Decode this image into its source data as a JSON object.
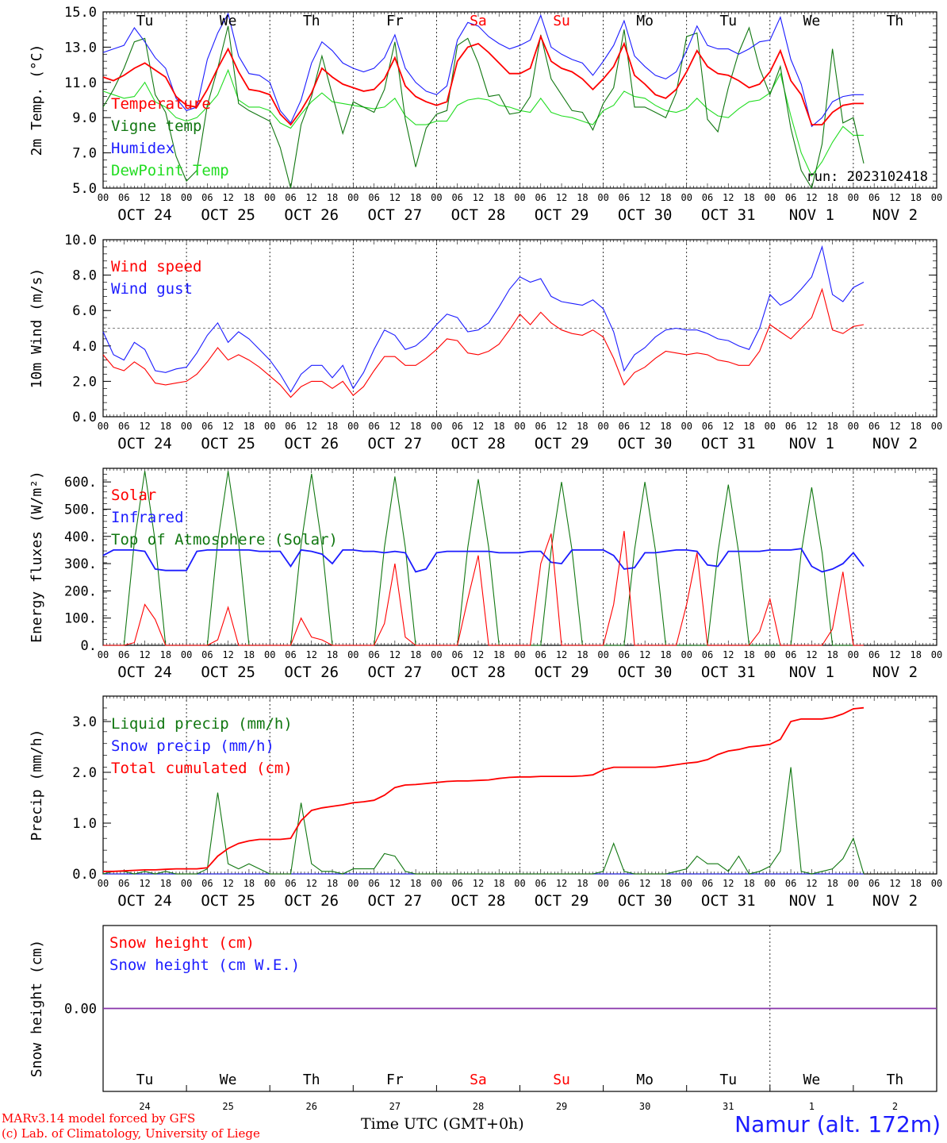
{
  "day_labels": [
    "Tu",
    "We",
    "Th",
    "Fr",
    "Sa",
    "Su",
    "Mo",
    "Tu",
    "We",
    "Th"
  ],
  "weekend_days": [
    "Sa",
    "Su"
  ],
  "date_labels": [
    "OCT 24",
    "OCT 25",
    "OCT 26",
    "OCT 27",
    "OCT 28",
    "OCT 29",
    "OCT 30",
    "OCT 31",
    "NOV  1",
    "NOV  2"
  ],
  "bottom_day_numbers": [
    "24",
    "25",
    "26",
    "27",
    "28",
    "29",
    "30",
    "31",
    "1",
    "2"
  ],
  "hour_ticks": [
    "00",
    "06",
    "12",
    "18"
  ],
  "run_label": "run: 2023102418",
  "footer": {
    "credit_1": "MARv3.14 model forced by GFS",
    "credit_2": "(c) Lab. of Climatology, University of Liege",
    "x_title": "Time UTC (GMT+0h)",
    "station": "Namur (alt. 172m)"
  },
  "colors": {
    "red": "#ff0000",
    "green": "#117711",
    "blue": "#1c1cff",
    "lightgreen": "#22dd22",
    "purple": "#8833aa"
  },
  "chart_data": [
    {
      "type": "line",
      "ylabel": "2m Temp. (°C)",
      "ylim": [
        5,
        15
      ],
      "yticks": [
        "5.0",
        "7.0",
        "9.0",
        "11.0",
        "13.0",
        "15.0"
      ],
      "x_unit": "hours since 2023-10-24 00 UTC (3-hourly)",
      "series": [
        {
          "name": "Temperature",
          "color": "#ff0000",
          "values": [
            11.3,
            11.1,
            11.4,
            11.8,
            12.1,
            11.7,
            11.3,
            10.2,
            9.7,
            9.6,
            10.6,
            11.8,
            12.9,
            11.6,
            10.6,
            10.5,
            10.3,
            9.2,
            8.6,
            9.4,
            10.4,
            11.8,
            11.3,
            10.9,
            10.7,
            10.5,
            10.6,
            11.2,
            12.4,
            10.8,
            10.2,
            9.9,
            9.7,
            9.9,
            12.2,
            13.0,
            13.2,
            12.7,
            12.1,
            11.5,
            11.5,
            11.8,
            13.6,
            12.2,
            11.8,
            11.6,
            11.2,
            10.6,
            11.2,
            11.9,
            13.2,
            11.4,
            10.9,
            10.3,
            10.1,
            10.6,
            11.6,
            12.8,
            11.9,
            11.5,
            11.4,
            11.1,
            10.7,
            10.9,
            11.6,
            12.8,
            11.1,
            10.3,
            8.6,
            8.6,
            9.3,
            9.7,
            9.8,
            9.8
          ]
        },
        {
          "name": "Vigne temp",
          "color": "#117711",
          "values": [
            9.6,
            10.6,
            11.8,
            13.3,
            13.5,
            10.3,
            9.3,
            6.8,
            5.4,
            6.0,
            9.7,
            11.8,
            14.2,
            9.8,
            9.4,
            9.1,
            8.8,
            7.3,
            5.0,
            8.6,
            10.2,
            12.5,
            10.3,
            8.1,
            9.9,
            9.6,
            9.3,
            10.6,
            13.3,
            8.9,
            6.2,
            8.4,
            9.2,
            9.4,
            13.1,
            13.5,
            12.1,
            10.2,
            10.3,
            9.2,
            9.3,
            10.2,
            13.7,
            11.2,
            10.3,
            9.4,
            9.3,
            8.3,
            9.8,
            10.7,
            14.0,
            9.6,
            9.6,
            9.3,
            9.0,
            10.4,
            13.6,
            13.8,
            8.9,
            8.2,
            10.7,
            12.7,
            14.1,
            11.8,
            10.3,
            11.9,
            8.4,
            6.0,
            5.0,
            7.5,
            12.9,
            8.7,
            9.0,
            6.4
          ]
        },
        {
          "name": "Humidex",
          "color": "#1c1cff",
          "values": [
            12.7,
            12.9,
            13.1,
            14.1,
            13.3,
            12.4,
            11.8,
            10.1,
            9.4,
            9.6,
            12.3,
            13.8,
            14.9,
            12.5,
            11.5,
            11.4,
            11.0,
            9.4,
            8.7,
            10.0,
            12.1,
            13.3,
            12.8,
            12.1,
            11.8,
            11.6,
            11.8,
            12.4,
            13.7,
            11.8,
            11.0,
            10.5,
            10.3,
            10.8,
            13.4,
            14.4,
            14.2,
            13.6,
            13.2,
            12.9,
            13.1,
            13.4,
            14.8,
            13.0,
            12.6,
            12.3,
            12.1,
            11.4,
            12.2,
            13.1,
            14.5,
            12.5,
            11.9,
            11.4,
            11.2,
            11.6,
            12.8,
            14.2,
            13.1,
            12.9,
            12.9,
            12.6,
            12.9,
            13.3,
            13.4,
            14.7,
            12.3,
            10.9,
            8.5,
            9.0,
            9.9,
            10.2,
            10.3,
            10.3
          ]
        },
        {
          "name": "DewPoint Temp",
          "color": "#22dd22",
          "values": [
            10.5,
            10.3,
            10.1,
            10.2,
            11.0,
            9.9,
            9.6,
            9.0,
            8.8,
            9.0,
            9.6,
            10.3,
            11.7,
            10.0,
            9.6,
            9.6,
            9.4,
            8.7,
            8.4,
            9.2,
            9.9,
            10.4,
            9.9,
            9.8,
            9.7,
            9.6,
            9.5,
            9.6,
            10.1,
            9.1,
            8.6,
            8.6,
            8.8,
            8.8,
            9.7,
            10.0,
            10.1,
            10.0,
            9.7,
            9.6,
            9.4,
            9.3,
            10.1,
            9.3,
            9.1,
            9.0,
            8.8,
            8.6,
            9.4,
            9.7,
            10.5,
            10.2,
            10.1,
            9.7,
            9.4,
            9.3,
            9.5,
            10.1,
            9.5,
            9.1,
            9.0,
            9.5,
            9.9,
            10.0,
            10.4,
            11.5,
            9.1,
            7.0,
            5.7,
            6.5,
            7.6,
            8.5,
            8.0,
            8.0
          ]
        }
      ]
    },
    {
      "type": "line",
      "ylabel": "10m Wind (m/s)",
      "ylim": [
        0,
        10
      ],
      "yticks": [
        "0.0",
        "2.0",
        "4.0",
        "6.0",
        "8.0",
        "10.0"
      ],
      "reference_line": 5,
      "series": [
        {
          "name": "Wind speed",
          "color": "#ff0000",
          "values": [
            3.5,
            2.8,
            2.6,
            3.1,
            2.7,
            1.9,
            1.8,
            1.9,
            2.0,
            2.4,
            3.1,
            3.9,
            3.2,
            3.5,
            3.2,
            2.8,
            2.3,
            1.8,
            1.1,
            1.7,
            2.0,
            2.0,
            1.6,
            2.0,
            1.2,
            1.7,
            2.6,
            3.4,
            3.4,
            2.9,
            2.9,
            3.3,
            3.8,
            4.4,
            4.3,
            3.6,
            3.5,
            3.7,
            4.1,
            4.9,
            5.8,
            5.2,
            5.9,
            5.3,
            4.9,
            4.7,
            4.6,
            4.9,
            4.5,
            3.3,
            1.8,
            2.5,
            2.8,
            3.3,
            3.7,
            3.6,
            3.5,
            3.6,
            3.5,
            3.2,
            3.1,
            2.9,
            2.9,
            3.7,
            5.2,
            4.8,
            4.4,
            5.0,
            5.6,
            7.2,
            4.9,
            4.7,
            5.1,
            5.2
          ]
        },
        {
          "name": "Wind gust",
          "color": "#1c1cff",
          "values": [
            4.8,
            3.5,
            3.2,
            4.2,
            3.8,
            2.6,
            2.5,
            2.7,
            2.8,
            3.6,
            4.6,
            5.3,
            4.2,
            4.8,
            4.4,
            3.8,
            3.2,
            2.4,
            1.4,
            2.4,
            2.9,
            2.9,
            2.2,
            2.9,
            1.6,
            2.5,
            3.8,
            4.9,
            4.6,
            3.8,
            4.0,
            4.5,
            5.2,
            5.8,
            5.6,
            4.8,
            4.9,
            5.3,
            6.2,
            7.2,
            7.9,
            7.6,
            7.8,
            6.8,
            6.5,
            6.4,
            6.3,
            6.6,
            6.1,
            4.8,
            2.6,
            3.5,
            3.9,
            4.5,
            4.9,
            5.0,
            4.9,
            4.9,
            4.7,
            4.4,
            4.3,
            4.0,
            3.8,
            5.0,
            6.9,
            6.3,
            6.6,
            7.2,
            7.9,
            9.6,
            6.9,
            6.5,
            7.3,
            7.6
          ]
        }
      ]
    },
    {
      "type": "line",
      "ylabel": "Energy fluxes (W/m²)",
      "ylim": [
        0,
        650
      ],
      "yticks": [
        "0.",
        "100.",
        "200.",
        "300.",
        "400.",
        "500.",
        "600."
      ],
      "series": [
        {
          "name": "Solar",
          "color": "#ff0000",
          "values": [
            0,
            0,
            0,
            10,
            150,
            95,
            0,
            0,
            0,
            0,
            0,
            20,
            140,
            0,
            0,
            0,
            0,
            0,
            0,
            100,
            30,
            20,
            0,
            0,
            0,
            0,
            0,
            80,
            300,
            30,
            0,
            0,
            0,
            0,
            0,
            170,
            330,
            0,
            0,
            0,
            0,
            0,
            300,
            410,
            0,
            0,
            0,
            0,
            0,
            150,
            420,
            0,
            0,
            0,
            0,
            0,
            150,
            340,
            0,
            0,
            0,
            0,
            0,
            50,
            170,
            0,
            0,
            0,
            0,
            0,
            60,
            270,
            0,
            0
          ]
        },
        {
          "name": "Infrared",
          "color": "#1c1cff",
          "values": [
            330,
            350,
            350,
            350,
            345,
            280,
            275,
            275,
            275,
            345,
            350,
            350,
            350,
            350,
            350,
            345,
            345,
            345,
            290,
            350,
            345,
            335,
            300,
            350,
            350,
            345,
            345,
            340,
            345,
            340,
            270,
            280,
            340,
            345,
            345,
            345,
            345,
            345,
            340,
            340,
            340,
            345,
            345,
            305,
            300,
            350,
            350,
            350,
            350,
            330,
            280,
            285,
            340,
            340,
            345,
            350,
            350,
            345,
            295,
            290,
            345,
            345,
            345,
            345,
            350,
            350,
            350,
            355,
            290,
            270,
            280,
            300,
            340,
            290
          ]
        },
        {
          "name": "Top of Atmosphere (Solar)",
          "color": "#117711",
          "values": [
            0,
            0,
            0,
            380,
            640,
            380,
            0,
            0,
            0,
            0,
            0,
            380,
            640,
            380,
            0,
            0,
            0,
            0,
            0,
            370,
            630,
            370,
            0,
            0,
            0,
            0,
            0,
            360,
            620,
            360,
            0,
            0,
            0,
            0,
            0,
            360,
            610,
            360,
            0,
            0,
            0,
            0,
            0,
            350,
            600,
            350,
            0,
            0,
            0,
            0,
            0,
            350,
            600,
            350,
            0,
            0,
            0,
            0,
            0,
            340,
            590,
            340,
            0,
            0,
            0,
            0,
            0,
            340,
            580,
            340,
            0,
            0,
            0,
            0
          ]
        }
      ]
    },
    {
      "type": "line",
      "ylabel": "Precip (mm/h)",
      "ylim": [
        0,
        3.5
      ],
      "yticks": [
        "0.0",
        "1.0",
        "2.0",
        "3.0"
      ],
      "series": [
        {
          "name": "Liquid precip (mm/h)",
          "color": "#117711",
          "values": [
            0,
            0.05,
            0.05,
            0,
            0.05,
            0,
            0.05,
            0,
            0,
            0,
            0.1,
            1.6,
            0.2,
            0.1,
            0.2,
            0.1,
            0,
            0,
            0,
            1.4,
            0.2,
            0.05,
            0.05,
            0,
            0.1,
            0.1,
            0.1,
            0.4,
            0.35,
            0.05,
            0,
            0,
            0,
            0,
            0,
            0,
            0,
            0,
            0,
            0,
            0,
            0,
            0,
            0,
            0,
            0,
            0,
            0,
            0.05,
            0.6,
            0.05,
            0,
            0,
            0,
            0,
            0.05,
            0.1,
            0.35,
            0.2,
            0.2,
            0.05,
            0.35,
            0,
            0.05,
            0.15,
            0.45,
            2.1,
            0.05,
            0,
            0.05,
            0.1,
            0.3,
            0.7,
            0
          ]
        },
        {
          "name": "Snow precip (mm/h)",
          "color": "#1c1cff",
          "values": [
            0,
            0,
            0,
            0,
            0,
            0,
            0,
            0,
            0,
            0,
            0,
            0,
            0,
            0,
            0,
            0,
            0,
            0,
            0,
            0,
            0,
            0,
            0,
            0,
            0,
            0,
            0,
            0,
            0,
            0,
            0,
            0,
            0,
            0,
            0,
            0,
            0,
            0,
            0,
            0,
            0,
            0,
            0,
            0,
            0,
            0,
            0,
            0,
            0,
            0,
            0,
            0,
            0,
            0,
            0,
            0,
            0,
            0,
            0,
            0,
            0,
            0,
            0,
            0,
            0,
            0,
            0,
            0,
            0,
            0,
            0,
            0,
            0,
            0
          ]
        },
        {
          "name": "Total cumulated (cm)",
          "color": "#ff0000",
          "values": [
            0.05,
            0.05,
            0.06,
            0.07,
            0.08,
            0.08,
            0.09,
            0.1,
            0.1,
            0.1,
            0.12,
            0.35,
            0.5,
            0.6,
            0.65,
            0.68,
            0.68,
            0.68,
            0.7,
            1.05,
            1.25,
            1.3,
            1.33,
            1.36,
            1.4,
            1.42,
            1.45,
            1.55,
            1.7,
            1.75,
            1.76,
            1.78,
            1.8,
            1.82,
            1.83,
            1.83,
            1.84,
            1.85,
            1.88,
            1.9,
            1.91,
            1.91,
            1.92,
            1.92,
            1.92,
            1.92,
            1.93,
            1.95,
            2.05,
            2.1,
            2.1,
            2.1,
            2.1,
            2.1,
            2.12,
            2.15,
            2.18,
            2.2,
            2.25,
            2.35,
            2.42,
            2.45,
            2.5,
            2.52,
            2.55,
            2.65,
            3.0,
            3.05,
            3.05,
            3.05,
            3.08,
            3.15,
            3.25,
            3.27
          ]
        }
      ]
    },
    {
      "type": "line",
      "ylabel": "Snow height (cm)",
      "yticks": [
        "0.00"
      ],
      "series": [
        {
          "name": "Snow height (cm)",
          "color": "#ff0000",
          "values": [
            0,
            0
          ]
        },
        {
          "name": "Snow height (cm W.E.)",
          "color": "#1c1cff",
          "values": [
            0,
            0
          ]
        }
      ]
    }
  ]
}
